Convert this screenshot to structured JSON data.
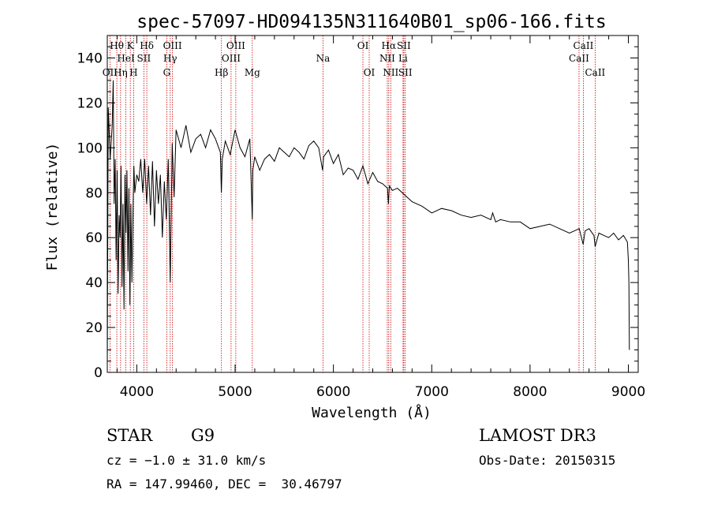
{
  "chart_data": {
    "type": "line",
    "title": "spec-57097-HD094135N311640B01_sp06-166.fits",
    "xlabel": "Wavelength (Å)",
    "ylabel": "Flux (relative)",
    "xlim": [
      3700,
      9100
    ],
    "ylim": [
      0,
      150
    ],
    "xticks": [
      4000,
      5000,
      6000,
      7000,
      8000,
      9000
    ],
    "yticks": [
      0,
      20,
      40,
      60,
      80,
      100,
      120,
      140
    ],
    "series": [
      {
        "name": "flux",
        "x": [
          3700,
          3710,
          3730,
          3750,
          3760,
          3770,
          3780,
          3790,
          3800,
          3810,
          3820,
          3830,
          3840,
          3850,
          3860,
          3870,
          3880,
          3890,
          3900,
          3910,
          3920,
          3930,
          3940,
          3950,
          3960,
          3970,
          3980,
          3990,
          4000,
          4020,
          4040,
          4060,
          4080,
          4100,
          4120,
          4140,
          4160,
          4180,
          4200,
          4220,
          4240,
          4260,
          4280,
          4300,
          4320,
          4340,
          4360,
          4380,
          4400,
          4450,
          4500,
          4550,
          4600,
          4650,
          4700,
          4750,
          4800,
          4850,
          4860,
          4870,
          4900,
          4950,
          5000,
          5050,
          5100,
          5150,
          5170,
          5175,
          5180,
          5200,
          5250,
          5300,
          5350,
          5400,
          5450,
          5500,
          5550,
          5600,
          5650,
          5700,
          5750,
          5800,
          5850,
          5890,
          5900,
          5950,
          6000,
          6050,
          6100,
          6150,
          6200,
          6250,
          6300,
          6350,
          6400,
          6450,
          6500,
          6550,
          6560,
          6565,
          6570,
          6600,
          6650,
          6700,
          6750,
          6800,
          6900,
          7000,
          7100,
          7200,
          7300,
          7400,
          7500,
          7600,
          7620,
          7650,
          7700,
          7800,
          7900,
          8000,
          8100,
          8200,
          8300,
          8400,
          8450,
          8500,
          8540,
          8560,
          8600,
          8650,
          8662,
          8700,
          8750,
          8800,
          8850,
          8900,
          8950,
          8990,
          9000,
          9005,
          9010
        ],
        "y": [
          2,
          118,
          95,
          110,
          130,
          75,
          95,
          50,
          90,
          35,
          70,
          60,
          92,
          38,
          75,
          28,
          88,
          62,
          90,
          45,
          82,
          30,
          75,
          40,
          68,
          92,
          80,
          84,
          88,
          85,
          95,
          80,
          95,
          75,
          92,
          70,
          94,
          65,
          90,
          75,
          88,
          60,
          85,
          68,
          95,
          40,
          102,
          78,
          108,
          100,
          110,
          98,
          104,
          106,
          100,
          108,
          104,
          98,
          80,
          95,
          103,
          97,
          108,
          100,
          96,
          104,
          75,
          68,
          90,
          96,
          90,
          95,
          97,
          94,
          100,
          98,
          96,
          100,
          98,
          95,
          101,
          103,
          100,
          90,
          96,
          99,
          93,
          97,
          88,
          91,
          90,
          86,
          92,
          84,
          89,
          85,
          84,
          82,
          75,
          80,
          83,
          81,
          82,
          80,
          78,
          76,
          74,
          71,
          73,
          72,
          70,
          69,
          70,
          68,
          71,
          67,
          68,
          67,
          67,
          64,
          65,
          66,
          64,
          62,
          63,
          64,
          57,
          63,
          64,
          61,
          56,
          62,
          61,
          60,
          62,
          59,
          61,
          58,
          50,
          40,
          10
        ]
      }
    ],
    "line_markers": [
      {
        "label": "OII",
        "wavelength": 3727,
        "row": 2
      },
      {
        "label": "Hθ",
        "wavelength": 3797,
        "row": 0
      },
      {
        "label": "Hη",
        "wavelength": 3835,
        "row": 2
      },
      {
        "label": "HeI",
        "wavelength": 3889,
        "row": 1
      },
      {
        "label": "K",
        "wavelength": 3934,
        "row": 0
      },
      {
        "label": "H",
        "wavelength": 3968,
        "row": 2
      },
      {
        "label": "SII",
        "wavelength": 4072,
        "row": 1
      },
      {
        "label": "Hδ",
        "wavelength": 4102,
        "row": 0
      },
      {
        "label": "G",
        "wavelength": 4305,
        "row": 2
      },
      {
        "label": "Hγ",
        "wavelength": 4340,
        "row": 1
      },
      {
        "label": "OIII",
        "wavelength": 4363,
        "row": 0
      },
      {
        "label": "Hβ",
        "wavelength": 4861,
        "row": 2
      },
      {
        "label": "OIII",
        "wavelength": 4959,
        "row": 1
      },
      {
        "label": "OIII",
        "wavelength": 5007,
        "row": 0
      },
      {
        "label": "Mg",
        "wavelength": 5175,
        "row": 2
      },
      {
        "label": "Na",
        "wavelength": 5894,
        "row": 1
      },
      {
        "label": "OI",
        "wavelength": 6300,
        "row": 0
      },
      {
        "label": "OI",
        "wavelength": 6364,
        "row": 2
      },
      {
        "label": "NII",
        "wavelength": 6548,
        "row": 1
      },
      {
        "label": "Hα",
        "wavelength": 6563,
        "row": 0
      },
      {
        "label": "NII",
        "wavelength": 6583,
        "row": 2
      },
      {
        "label": "Li",
        "wavelength": 6708,
        "row": 1
      },
      {
        "label": "SII",
        "wavelength": 6716,
        "row": 0
      },
      {
        "label": "SII",
        "wavelength": 6731,
        "row": 2
      },
      {
        "label": "CaII",
        "wavelength": 8498,
        "row": 1
      },
      {
        "label": "CaII",
        "wavelength": 8542,
        "row": 0
      },
      {
        "label": "CaII",
        "wavelength": 8662,
        "row": 2
      }
    ],
    "marker_color": "#cc0000"
  },
  "info": {
    "object_class": "STAR",
    "subclass": "G9",
    "survey": "LAMOST DR3",
    "redshift": "cz = −1.0 ± 31.0 km/s",
    "obs_date": "Obs-Date: 20150315",
    "coords": "RA = 147.99460, DEC =  30.46797"
  }
}
